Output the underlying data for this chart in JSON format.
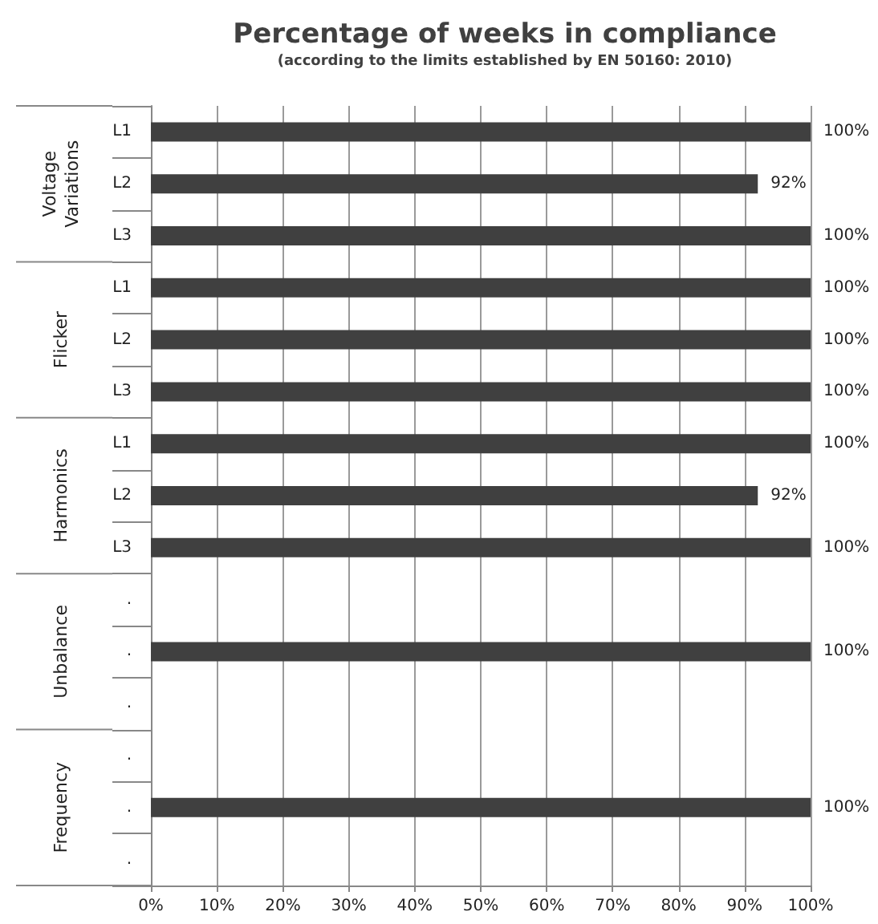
{
  "chart_data": {
    "type": "bar",
    "orientation": "horizontal",
    "title": "Percentage of weeks in compliance",
    "subtitle": "(according to the limits established by EN 50160: 2010)",
    "categories": [
      "L1",
      "L2",
      "L3",
      "L1",
      "L2",
      "L3",
      "L1",
      "L2",
      "L3",
      ".",
      ".",
      ".",
      ".",
      ".",
      "."
    ],
    "values": [
      100,
      92,
      100,
      100,
      100,
      100,
      100,
      92,
      100,
      null,
      100,
      null,
      null,
      100,
      null
    ],
    "value_labels": [
      "100%",
      "92%",
      "100%",
      "100%",
      "100%",
      "100%",
      "100%",
      "92%",
      "100%",
      null,
      "100%",
      null,
      null,
      "100%",
      null
    ],
    "color": "#404040",
    "xlim": [
      0,
      100
    ],
    "xticks": [
      {
        "value": 0,
        "label": "0%"
      },
      {
        "value": 10,
        "label": "10%"
      },
      {
        "value": 20,
        "label": "20%"
      },
      {
        "value": 30,
        "label": "30%"
      },
      {
        "value": 40,
        "label": "40%"
      },
      {
        "value": 50,
        "label": "50%"
      },
      {
        "value": 60,
        "label": "60%"
      },
      {
        "value": 70,
        "label": "70%"
      },
      {
        "value": 80,
        "label": "80%"
      },
      {
        "value": 90,
        "label": "90%"
      },
      {
        "value": 100,
        "label": "100%"
      }
    ],
    "grid": "x",
    "annotations": [
      "Voltage\nVariations",
      "Flicker",
      "Harmonics",
      "Unbalance",
      "Frequency"
    ]
  }
}
